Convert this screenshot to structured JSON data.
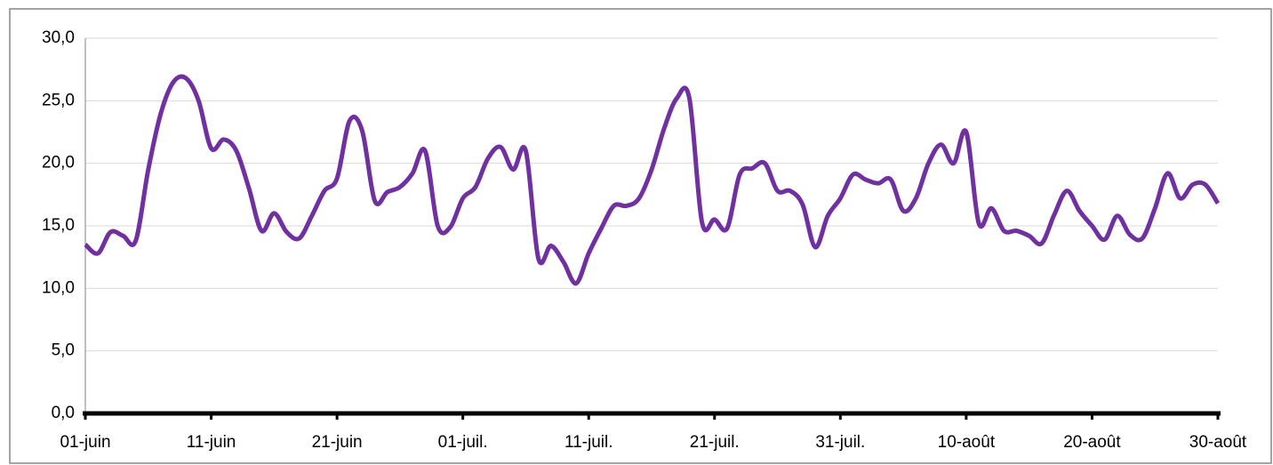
{
  "chart_data": {
    "type": "line",
    "categories": [
      "01-juin",
      null,
      null,
      null,
      null,
      null,
      null,
      null,
      null,
      null,
      "11-juin",
      null,
      null,
      null,
      null,
      null,
      null,
      null,
      null,
      null,
      "21-juin",
      null,
      null,
      null,
      null,
      null,
      null,
      null,
      null,
      null,
      "01-juil.",
      null,
      null,
      null,
      null,
      null,
      null,
      null,
      null,
      null,
      "11-juil.",
      null,
      null,
      null,
      null,
      null,
      null,
      null,
      null,
      null,
      "21-juil.",
      null,
      null,
      null,
      null,
      null,
      null,
      null,
      null,
      null,
      "31-juil.",
      null,
      null,
      null,
      null,
      null,
      null,
      null,
      null,
      null,
      "10-août",
      null,
      null,
      null,
      null,
      null,
      null,
      null,
      null,
      null,
      "20-août",
      null,
      null,
      null,
      null,
      null,
      null,
      null,
      null,
      null,
      "30-août"
    ],
    "series": [
      {
        "color": "#7030a0",
        "values": [
          13.5,
          12.8,
          14.5,
          14.2,
          13.8,
          19.5,
          24.0,
          26.5,
          26.8,
          25.0,
          21.2,
          21.9,
          21.0,
          18.0,
          14.6,
          16.0,
          14.5,
          14.0,
          15.8,
          17.8,
          18.8,
          23.4,
          22.6,
          17.0,
          17.7,
          18.1,
          19.2,
          21.0,
          15.0,
          14.9,
          17.2,
          18.1,
          20.4,
          21.3,
          19.5,
          21.0,
          12.4,
          13.4,
          12.1,
          10.4,
          12.8,
          14.8,
          16.6,
          16.6,
          17.2,
          19.5,
          22.8,
          25.2,
          25.2,
          15.3,
          15.5,
          14.8,
          19.1,
          19.6,
          20.0,
          17.8,
          17.8,
          16.7,
          13.3,
          15.8,
          17.2,
          19.1,
          18.7,
          18.4,
          18.7,
          16.2,
          17.2,
          20.0,
          21.5,
          20.0,
          22.5,
          15.2,
          16.4,
          14.6,
          14.6,
          14.2,
          13.6,
          15.9,
          17.8,
          16.2,
          15.0,
          13.9,
          15.8,
          14.3,
          14.0,
          16.4,
          19.2,
          17.2,
          18.3,
          18.3,
          16.8
        ]
      }
    ],
    "ylim": [
      0,
      30
    ],
    "yticks": [
      {
        "value": 0,
        "label": "0,0"
      },
      {
        "value": 5,
        "label": "5,0"
      },
      {
        "value": 10,
        "label": "10,0"
      },
      {
        "value": 15,
        "label": "15,0"
      },
      {
        "value": 20,
        "label": "20,0"
      },
      {
        "value": 25,
        "label": "25,0"
      },
      {
        "value": 30,
        "label": "30,0"
      }
    ],
    "grid": true
  }
}
